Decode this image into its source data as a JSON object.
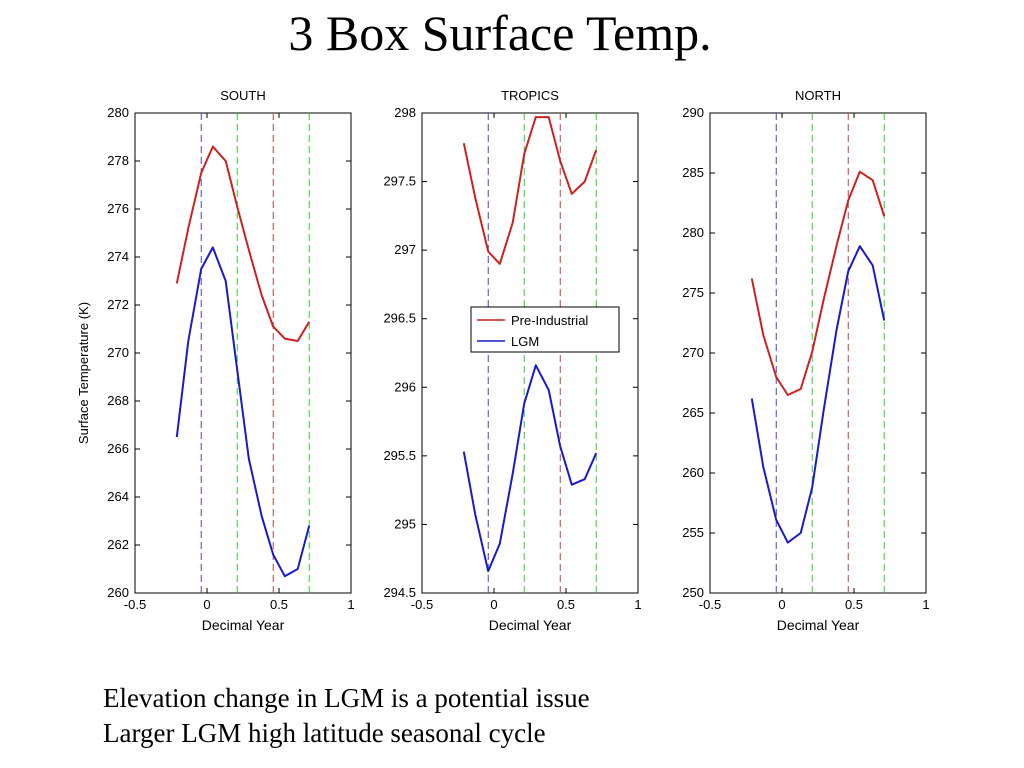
{
  "slide": {
    "title": "3 Box Surface Temp.",
    "bullets": [
      "Elevation change in LGM is a potential issue",
      "Larger LGM high latitude seasonal cycle"
    ]
  },
  "colors": {
    "pre_industrial": "#cc2222",
    "lgm": "#1a1acc",
    "dash_blue": "#4444cc",
    "dash_green": "#33cc33",
    "dash_red": "#bb4444"
  },
  "chart_data": [
    {
      "type": "line",
      "title": "SOUTH",
      "xlabel": "Decimal Year",
      "ylabel": "Surface Temperature (K)",
      "xlim": [
        -0.5,
        1
      ],
      "ylim": [
        260,
        280
      ],
      "xticks": [
        "-0.5",
        "0",
        "0.5",
        "1"
      ],
      "yticks": [
        "260",
        "262",
        "264",
        "266",
        "268",
        "270",
        "272",
        "274",
        "276",
        "278",
        "280"
      ],
      "vlines": [
        {
          "x": -0.04,
          "color": "dash_blue"
        },
        {
          "x": 0.21,
          "color": "dash_green"
        },
        {
          "x": 0.46,
          "color": "dash_red"
        },
        {
          "x": 0.71,
          "color": "dash_green"
        }
      ],
      "series": [
        {
          "name": "Pre-Industrial",
          "color": "pre_industrial",
          "x": [
            -0.21,
            -0.13,
            -0.04,
            0.04,
            0.13,
            0.21,
            0.29,
            0.38,
            0.46,
            0.54,
            0.63,
            0.71
          ],
          "y": [
            272.9,
            275.2,
            277.5,
            278.6,
            278.0,
            276.1,
            274.3,
            272.4,
            271.1,
            270.6,
            270.5,
            271.3
          ]
        },
        {
          "name": "LGM",
          "color": "lgm",
          "x": [
            -0.21,
            -0.13,
            -0.04,
            0.04,
            0.13,
            0.21,
            0.29,
            0.38,
            0.46,
            0.54,
            0.63,
            0.71
          ],
          "y": [
            266.5,
            270.5,
            273.5,
            274.4,
            273.0,
            269.3,
            265.6,
            263.2,
            261.6,
            260.7,
            261.0,
            262.8
          ]
        }
      ]
    },
    {
      "type": "line",
      "title": "TROPICS",
      "xlabel": "Decimal Year",
      "ylabel": "",
      "xlim": [
        -0.5,
        1
      ],
      "ylim": [
        294.5,
        298
      ],
      "xticks": [
        "-0.5",
        "0",
        "0.5",
        "1"
      ],
      "yticks": [
        "294.5",
        "295",
        "295.5",
        "296",
        "296.5",
        "297",
        "297.5",
        "298"
      ],
      "legend": {
        "position": "center",
        "entries": [
          "Pre-Industrial",
          "LGM"
        ]
      },
      "vlines": [
        {
          "x": -0.04,
          "color": "dash_blue"
        },
        {
          "x": 0.21,
          "color": "dash_green"
        },
        {
          "x": 0.46,
          "color": "dash_red"
        },
        {
          "x": 0.71,
          "color": "dash_green"
        }
      ],
      "series": [
        {
          "name": "Pre-Industrial",
          "color": "pre_industrial",
          "x": [
            -0.21,
            -0.13,
            -0.04,
            0.04,
            0.13,
            0.21,
            0.29,
            0.38,
            0.46,
            0.54,
            0.63,
            0.71
          ],
          "y": [
            297.78,
            297.38,
            296.99,
            296.9,
            297.2,
            297.7,
            297.97,
            297.97,
            297.65,
            297.41,
            297.5,
            297.73
          ]
        },
        {
          "name": "LGM",
          "color": "lgm",
          "x": [
            -0.21,
            -0.13,
            -0.04,
            0.04,
            0.13,
            0.21,
            0.29,
            0.38,
            0.46,
            0.54,
            0.63,
            0.71
          ],
          "y": [
            295.53,
            295.07,
            294.66,
            294.86,
            295.37,
            295.88,
            296.16,
            295.98,
            295.57,
            295.29,
            295.33,
            295.52
          ]
        }
      ]
    },
    {
      "type": "line",
      "title": "NORTH",
      "xlabel": "Decimal Year",
      "ylabel": "",
      "xlim": [
        -0.5,
        1
      ],
      "ylim": [
        250,
        290
      ],
      "xticks": [
        "-0.5",
        "0",
        "0.5",
        "1"
      ],
      "yticks": [
        "250",
        "255",
        "260",
        "265",
        "270",
        "275",
        "280",
        "285",
        "290"
      ],
      "vlines": [
        {
          "x": -0.04,
          "color": "dash_blue"
        },
        {
          "x": 0.21,
          "color": "dash_green"
        },
        {
          "x": 0.46,
          "color": "dash_red"
        },
        {
          "x": 0.71,
          "color": "dash_green"
        }
      ],
      "series": [
        {
          "name": "Pre-Industrial",
          "color": "pre_industrial",
          "x": [
            -0.21,
            -0.13,
            -0.04,
            0.04,
            0.13,
            0.21,
            0.29,
            0.38,
            0.46,
            0.54,
            0.63,
            0.71
          ],
          "y": [
            276.2,
            271.5,
            268.0,
            266.5,
            267.0,
            270.1,
            274.5,
            279.0,
            282.7,
            285.1,
            284.4,
            281.4
          ]
        },
        {
          "name": "LGM",
          "color": "lgm",
          "x": [
            -0.21,
            -0.13,
            -0.04,
            0.04,
            0.13,
            0.21,
            0.29,
            0.38,
            0.46,
            0.54,
            0.63,
            0.71
          ],
          "y": [
            266.2,
            260.5,
            256.1,
            254.2,
            255.0,
            258.8,
            265.3,
            272.0,
            276.8,
            278.9,
            277.3,
            272.7
          ]
        }
      ]
    }
  ]
}
